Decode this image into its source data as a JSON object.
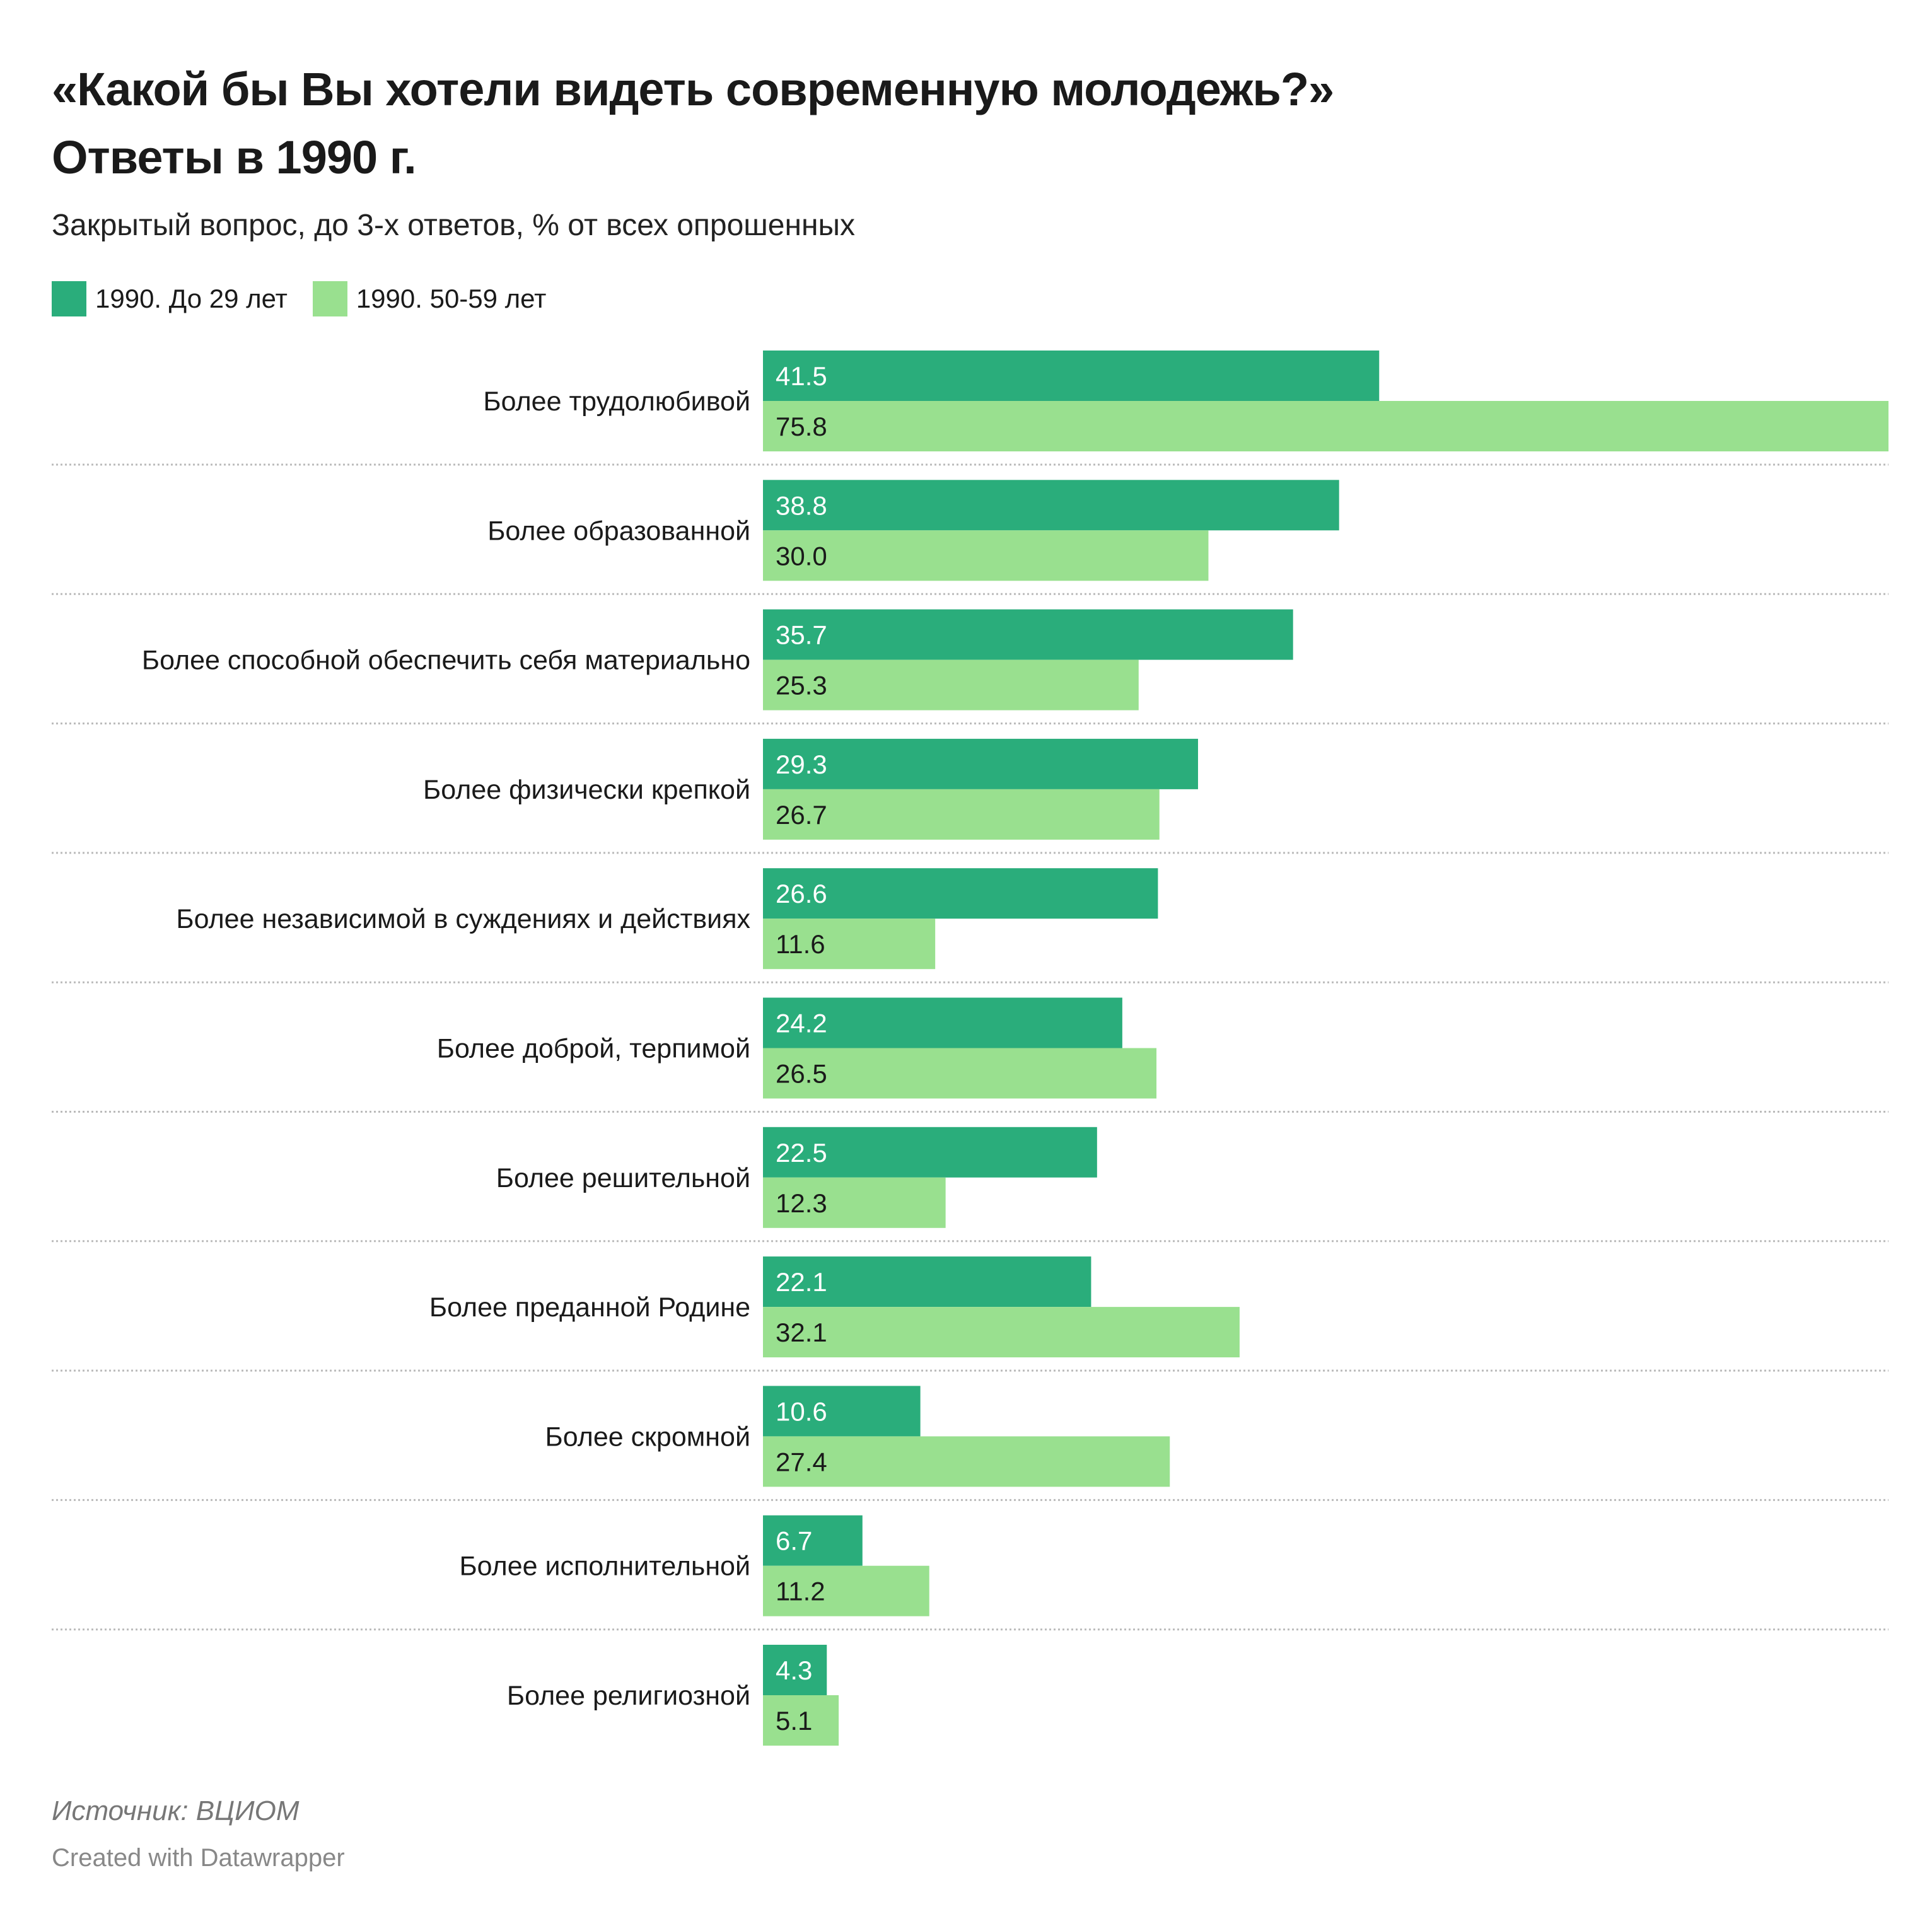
{
  "title_line1": "«Какой бы Вы хотели видеть современную молодежь?»",
  "title_line2": "Ответы в 1990 г.",
  "subtitle": "Закрытый вопрос, до 3-х ответов, % от всех опрошенных",
  "source": "Источник: ВЦИОМ",
  "credit": "Created with Datawrapper",
  "chart_data": {
    "type": "bar",
    "orientation": "horizontal",
    "title": "«Какой бы Вы хотели видеть современную молодежь?» Ответы в 1990 г.",
    "xlim": [
      0,
      75.8
    ],
    "legend_position": "top-left",
    "categories": [
      "Более трудолюбивой",
      "Более образованной",
      "Более способной обеспечить себя материально",
      "Более физически крепкой",
      "Более независимой в суждениях и действиях",
      "Более доброй, терпимой",
      "Более решительной",
      "Более преданной Родине",
      "Более скромной",
      "Более исполнительной",
      "Более религиозной"
    ],
    "series": [
      {
        "name": "1990. До 29 лет",
        "color": "#2aad7b",
        "values": [
          41.5,
          38.8,
          35.7,
          29.3,
          26.6,
          24.2,
          22.5,
          22.1,
          10.6,
          6.7,
          4.3
        ]
      },
      {
        "name": "1990. 50-59 лет",
        "color": "#99e08f",
        "values": [
          75.8,
          30.0,
          25.3,
          26.7,
          11.6,
          26.5,
          12.3,
          32.1,
          27.4,
          11.2,
          5.1
        ]
      }
    ]
  }
}
